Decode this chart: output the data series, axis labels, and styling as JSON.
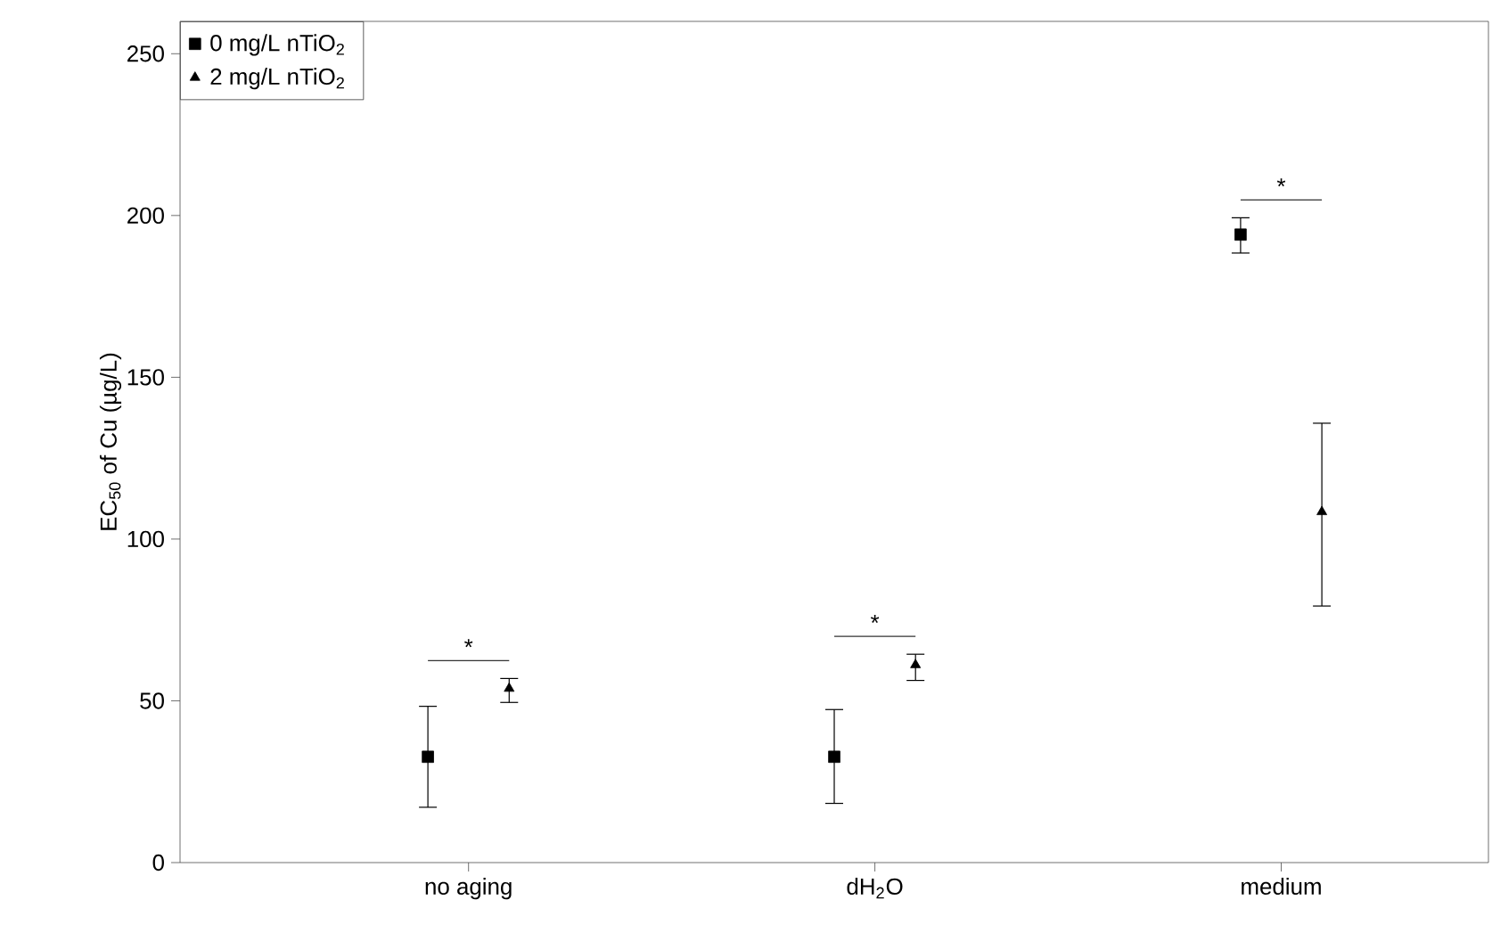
{
  "chart_data": {
    "type": "scatter",
    "ylabel": "EC$_{50}$ of Cu (µg/L)",
    "categories": [
      "no aging",
      "dH$_{2}$O",
      "medium"
    ],
    "series": [
      {
        "name": "0 mg/L nTiO$_{2}$",
        "color": "#000000",
        "marker": "square",
        "values": [
          32.7,
          32.7,
          194.1
        ],
        "errors": [
          [
            17.1,
            48.3
          ],
          [
            18.3,
            47.3
          ],
          [
            188.4,
            199.3
          ]
        ]
      },
      {
        "name": "2 mg/L nTiO$_{2}$",
        "color": "#000000",
        "marker": "triangle",
        "values": [
          53.8,
          61.1,
          108.4
        ],
        "errors": [
          [
            49.5,
            56.9
          ],
          [
            56.3,
            64.4
          ],
          [
            79.3,
            135.8
          ]
        ]
      }
    ],
    "ylim": [
      0,
      260
    ],
    "yticks": [
      0,
      50,
      100,
      150,
      200,
      250
    ],
    "legend": "top left",
    "grid": false,
    "annotations": [
      "*",
      "*",
      "*"
    ]
  }
}
